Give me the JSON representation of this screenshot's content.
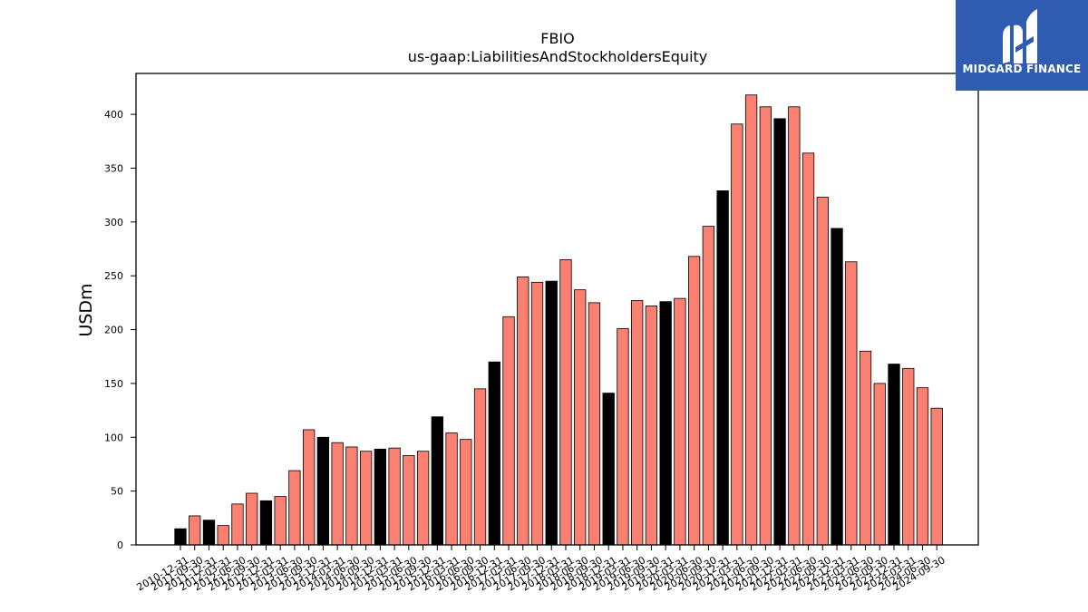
{
  "chart_data": {
    "type": "bar",
    "title": "FBIO",
    "subtitle": "us-gaap:LiabilitiesAndStockholdersEquity",
    "xlabel": "",
    "ylabel": "USDm",
    "ylim": [
      0,
      438
    ],
    "yticks": [
      0,
      50,
      100,
      150,
      200,
      250,
      300,
      350,
      400
    ],
    "grid": false,
    "colors": {
      "quarterly": "#fa8072",
      "annual": "#000000",
      "edge": "#000000"
    },
    "categories": [
      "2010-12-31",
      "2011-09-30",
      "2011-12-31",
      "2012-03-31",
      "2012-06-30",
      "2012-09-30",
      "2012-12-31",
      "2013-03-31",
      "2013-06-30",
      "2013-09-30",
      "2013-12-31",
      "2014-03-31",
      "2014-06-30",
      "2014-09-30",
      "2014-12-31",
      "2015-03-31",
      "2015-06-30",
      "2015-09-30",
      "2015-12-31",
      "2016-03-31",
      "2016-06-30",
      "2016-09-30",
      "2016-12-31",
      "2017-03-31",
      "2017-06-30",
      "2017-09-30",
      "2017-12-31",
      "2018-03-31",
      "2018-06-30",
      "2018-09-30",
      "2018-12-31",
      "2019-03-31",
      "2019-06-30",
      "2019-09-30",
      "2019-12-31",
      "2020-03-31",
      "2020-06-30",
      "2020-09-30",
      "2020-12-31",
      "2021-03-31",
      "2021-06-30",
      "2021-09-30",
      "2021-12-31",
      "2022-03-31",
      "2022-06-30",
      "2022-09-30",
      "2022-12-31",
      "2023-03-31",
      "2023-06-30",
      "2023-09-30",
      "2023-12-31",
      "2024-03-31",
      "2024-06-30",
      "2024-09-30"
    ],
    "values": [
      15,
      27,
      23,
      18,
      38,
      48,
      41,
      45,
      69,
      107,
      100,
      95,
      91,
      87,
      89,
      90,
      83,
      87,
      119,
      104,
      98,
      145,
      170,
      212,
      249,
      244,
      245,
      265,
      237,
      225,
      141,
      201,
      227,
      222,
      226,
      229,
      268,
      296,
      329,
      391,
      418,
      407,
      396,
      407,
      364,
      323,
      294,
      263,
      180,
      150,
      168,
      164,
      146,
      127
    ]
  },
  "logo": {
    "text": "MIDGARD FINANCE"
  }
}
